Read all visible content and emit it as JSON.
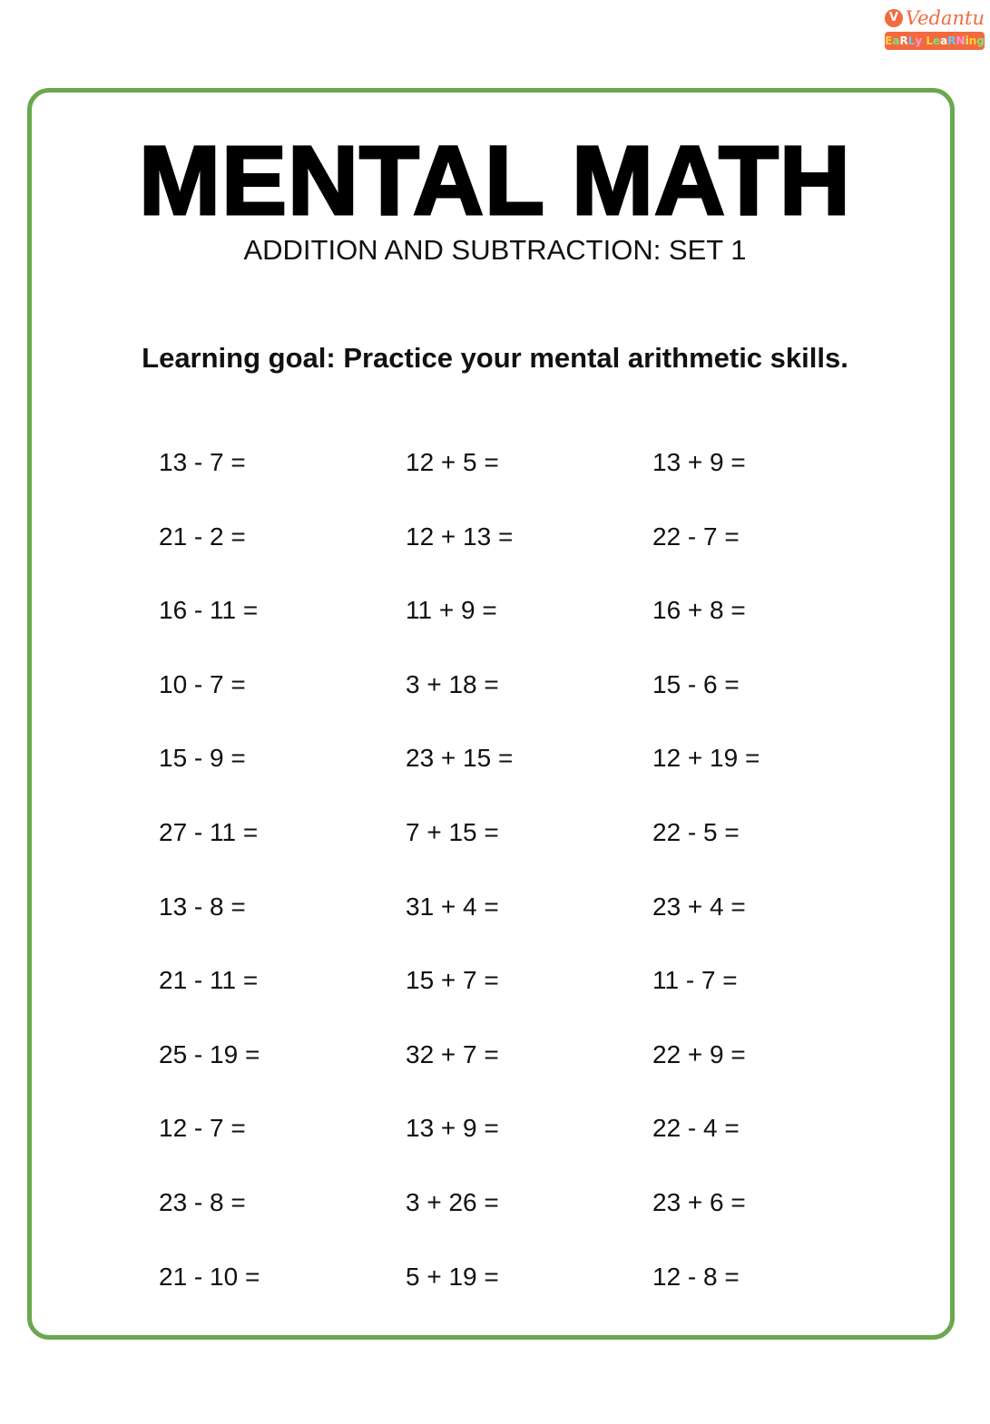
{
  "logo": {
    "brand": "Vedantu",
    "tagline": "EaRLy LeaRNing",
    "accent": "#f26a3d"
  },
  "title": "MENTAL MATH",
  "subtitle": "ADDITION AND SUBTRACTION: SET 1",
  "learning_goal": "Learning goal: Practice your mental arithmetic skills.",
  "border_color": "#6aa84f",
  "problems": [
    "13 - 7 =",
    "12 + 5 =",
    "13 + 9 =",
    "21 - 2 =",
    "12 + 13 =",
    "22 - 7 =",
    "16 - 11 =",
    "11 + 9 =",
    "16 + 8 =",
    "10 - 7 =",
    "3 + 18 =",
    "15 - 6 =",
    "15 - 9 =",
    "23 + 15 =",
    "12 + 19 =",
    "27 - 11 =",
    "7 + 15 =",
    "22 - 5 =",
    "13 - 8 =",
    "31 + 4 =",
    "23 + 4 =",
    "21 - 11 =",
    "15 + 7 =",
    "11 - 7 =",
    "25 - 19 =",
    "32 + 7 =",
    "22 + 9 =",
    "12 - 7 =",
    "13 + 9 =",
    "22 - 4 =",
    "23 - 8 =",
    "3 + 26 =",
    "23 + 6 =",
    "21 - 10 =",
    "5 + 19 =",
    "12 - 8 ="
  ]
}
